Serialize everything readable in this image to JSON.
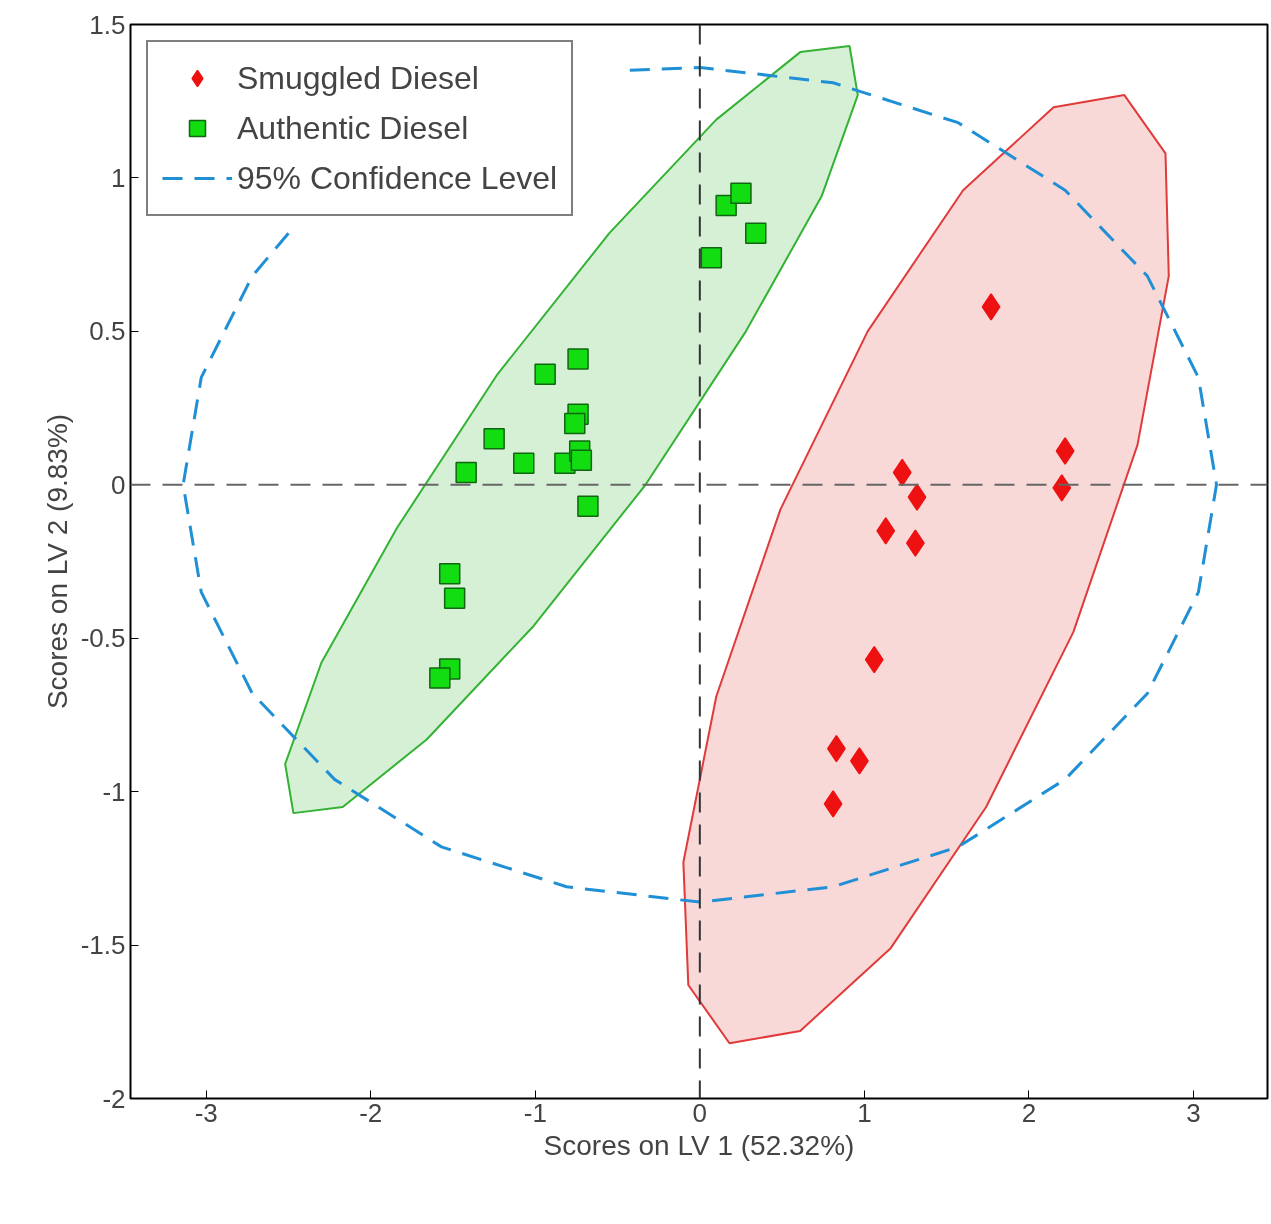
{
  "chart_data": {
    "type": "scatter",
    "xlabel": "Scores on LV 1 (52.32%)",
    "ylabel": "Scores on LV 2 (9.83%)",
    "xlim": [
      -3.46,
      3.45
    ],
    "ylim": [
      -2,
      1.5
    ],
    "xticks": [
      -3,
      -2,
      -1,
      0,
      1,
      2,
      3
    ],
    "yticks": [
      -2,
      -1.5,
      -1,
      -0.5,
      0,
      0.5,
      1,
      1.5
    ],
    "grid": false,
    "legend": "top left",
    "series": [
      {
        "type": "area",
        "color": "#33b233",
        "x": [
          0.91,
          0.96,
          0.74,
          0.28,
          -0.33,
          -1.01,
          -1.66,
          -2.17,
          -2.47,
          -2.52,
          -2.3,
          -1.84,
          -1.23,
          -0.55,
          0.1,
          0.61,
          0.91
        ],
        "values": [
          1.43,
          1.27,
          0.94,
          0.5,
          0.0,
          -0.46,
          -0.83,
          -1.05,
          -1.07,
          -0.91,
          -0.58,
          -0.14,
          0.36,
          0.82,
          1.19,
          1.41,
          1.43
        ]
      },
      {
        "type": "area",
        "color": "#e03a3a",
        "x": [
          2.58,
          2.83,
          2.85,
          2.66,
          2.27,
          1.74,
          1.16,
          0.61,
          0.18,
          -0.07,
          -0.1,
          0.1,
          0.49,
          1.02,
          1.6,
          2.15,
          2.58
        ],
        "values": [
          1.27,
          1.08,
          0.68,
          0.13,
          -0.48,
          -1.05,
          -1.51,
          -1.78,
          -1.82,
          -1.63,
          -1.23,
          -0.69,
          -0.08,
          0.5,
          0.96,
          1.23,
          1.27
        ]
      },
      {
        "name": "Smuggled Diesel",
        "color": "#ee1111",
        "marker": "diamond",
        "x": [
          1.77,
          1.23,
          2.22,
          2.2,
          1.32,
          1.13,
          1.31,
          1.06,
          0.83,
          0.97,
          0.81
        ],
        "values": [
          0.58,
          0.04,
          0.11,
          -0.01,
          -0.04,
          -0.15,
          -0.19,
          -0.57,
          -0.86,
          -0.9,
          -1.04
        ]
      },
      {
        "name": "Authentic Diesel",
        "color": "#11dd11",
        "marker": "square",
        "x": [
          0.07,
          0.16,
          0.25,
          0.34,
          -0.94,
          -0.74,
          -1.25,
          -0.74,
          -0.76,
          -1.07,
          -1.42,
          -0.82,
          -0.73,
          -0.72,
          -0.68,
          -1.52,
          -1.49,
          -1.52,
          -1.58
        ],
        "values": [
          0.74,
          0.91,
          0.95,
          0.82,
          0.36,
          0.41,
          0.15,
          0.23,
          0.2,
          0.07,
          0.04,
          0.07,
          0.11,
          0.08,
          -0.07,
          -0.29,
          -0.37,
          -0.6,
          -0.63
        ]
      },
      {
        "type": "line",
        "name": "95% Confidence Level",
        "color": "#1f8fd6",
        "line_style": "dashed",
        "x": [
          -2.5,
          -2.72,
          -3.03,
          -3.14,
          -3.03,
          -2.72,
          -2.22,
          -1.57,
          -0.81,
          0,
          0.81,
          1.57,
          2.22,
          2.72,
          3.03,
          3.14,
          3.03,
          2.72,
          2.22,
          1.57,
          0.81,
          0,
          -0.45
        ],
        "values": [
          0.82,
          0.68,
          0.35,
          0,
          -0.35,
          -0.68,
          -0.96,
          -1.18,
          -1.31,
          -1.36,
          -1.31,
          -1.18,
          -0.96,
          -0.68,
          -0.35,
          0,
          0.35,
          0.68,
          0.96,
          1.18,
          1.31,
          1.36,
          1.35
        ]
      }
    ],
    "ref_lines": [
      {
        "axis": "x",
        "value": 0,
        "color": "#333333",
        "line_style": "dashed"
      },
      {
        "axis": "y",
        "value": 0,
        "color": "#666666",
        "line_style": "dashed"
      }
    ]
  }
}
